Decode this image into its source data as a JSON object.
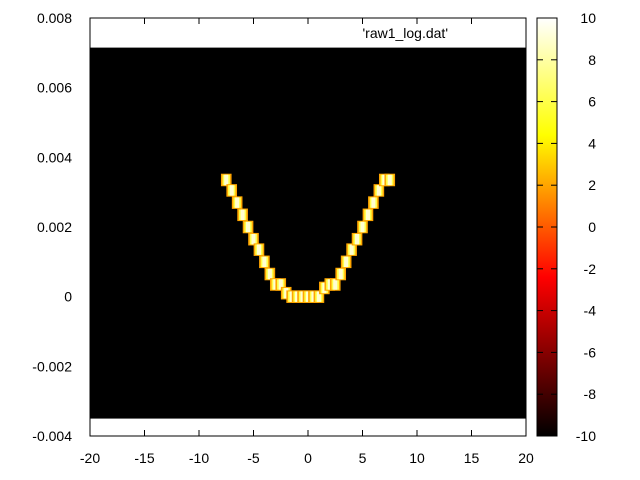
{
  "chart_data": {
    "type": "heatmap",
    "legend": {
      "entries": [
        "'raw1_log.dat'"
      ],
      "placement": "top-right"
    },
    "grid": false,
    "x_axis": {
      "range": [
        -20,
        20
      ],
      "ticks": [
        -20,
        -15,
        -10,
        -5,
        0,
        5,
        10,
        15,
        20
      ],
      "tick_labels": [
        "-20",
        "-15",
        "-10",
        "-5",
        "0",
        "5",
        "10",
        "15",
        "20"
      ]
    },
    "y_axis": {
      "range": [
        -0.004,
        0.008
      ],
      "ticks": [
        -0.004,
        -0.002,
        0,
        0.002,
        0.004,
        0.006,
        0.008
      ],
      "tick_labels": [
        "-0.004",
        "-0.002",
        "0",
        "0.002",
        "0.004",
        "0.006",
        "0.008"
      ]
    },
    "data_extent": {
      "x": [
        -20,
        20
      ],
      "y": [
        -0.0035,
        0.00715
      ]
    },
    "background_value": -10,
    "colorbar": {
      "range": [
        -10,
        10
      ],
      "ticks": [
        -10,
        -8,
        -6,
        -4,
        -2,
        0,
        2,
        4,
        6,
        8,
        10
      ],
      "tick_labels": [
        "-10",
        "-8",
        "-6",
        "-4",
        "-2",
        "0",
        "2",
        "4",
        "6",
        "8",
        "10"
      ],
      "palette": "hot",
      "colors": [
        "#000000",
        "#ff0000",
        "#ffff00",
        "#ffffff"
      ]
    },
    "curve": {
      "cell_width": 0.75,
      "cell_height": 0.0003,
      "core_value": 10,
      "edge_value": 2,
      "points": [
        {
          "x": -7.5,
          "y": 0.00335
        },
        {
          "x": -7.0,
          "y": 0.00305
        },
        {
          "x": -6.5,
          "y": 0.0027
        },
        {
          "x": -6.0,
          "y": 0.00235
        },
        {
          "x": -5.5,
          "y": 0.002
        },
        {
          "x": -5.0,
          "y": 0.00165
        },
        {
          "x": -4.5,
          "y": 0.00135
        },
        {
          "x": -4.0,
          "y": 0.001
        },
        {
          "x": -3.5,
          "y": 0.00065
        },
        {
          "x": -3.0,
          "y": 0.00035
        },
        {
          "x": -2.5,
          "y": 0.00035
        },
        {
          "x": -2.0,
          "y": 0.0001
        },
        {
          "x": -1.5,
          "y": 0.0
        },
        {
          "x": -1.0,
          "y": 0.0
        },
        {
          "x": -0.5,
          "y": 0.0
        },
        {
          "x": 0.0,
          "y": 0.0
        },
        {
          "x": 0.5,
          "y": 0.0
        },
        {
          "x": 1.0,
          "y": 0.0
        },
        {
          "x": 1.5,
          "y": 0.00025
        },
        {
          "x": 2.0,
          "y": 0.00035
        },
        {
          "x": 2.5,
          "y": 0.00035
        },
        {
          "x": 3.0,
          "y": 0.00065
        },
        {
          "x": 3.5,
          "y": 0.001
        },
        {
          "x": 4.0,
          "y": 0.00135
        },
        {
          "x": 4.5,
          "y": 0.00165
        },
        {
          "x": 5.0,
          "y": 0.002
        },
        {
          "x": 5.5,
          "y": 0.00235
        },
        {
          "x": 6.0,
          "y": 0.0027
        },
        {
          "x": 6.5,
          "y": 0.00305
        },
        {
          "x": 7.0,
          "y": 0.00335
        },
        {
          "x": 7.5,
          "y": 0.00335
        }
      ]
    }
  }
}
